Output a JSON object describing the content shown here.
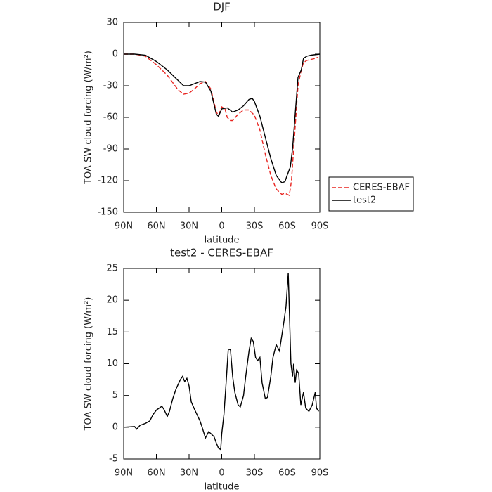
{
  "chart_data": [
    {
      "type": "line",
      "title": "DJF",
      "x_label": "latitude",
      "y_label": "TOA SW cloud forcing (W/m²)",
      "xlim": [
        90,
        -90
      ],
      "ylim": [
        -150,
        30
      ],
      "xticks": [
        {
          "value": 90,
          "label": "90N"
        },
        {
          "value": 60,
          "label": "60N"
        },
        {
          "value": 30,
          "label": "30N"
        },
        0,
        {
          "value": -30,
          "label": "30S"
        },
        {
          "value": -60,
          "label": "60S"
        },
        {
          "value": -90,
          "label": "90S"
        }
      ],
      "yticks": [
        -150,
        -120,
        -90,
        -60,
        -30,
        0,
        30
      ],
      "legend": "right",
      "series": [
        {
          "name": "CERES-EBAF",
          "color": "#e8231f",
          "line_style": "dashed",
          "x": [
            90,
            80,
            70,
            60,
            50,
            40,
            35,
            30,
            25,
            20,
            15,
            10,
            5,
            3,
            0,
            -3,
            -5,
            -8,
            -10,
            -15,
            -20,
            -25,
            -30,
            -35,
            -40,
            -45,
            -50,
            -55,
            -58,
            -60,
            -62,
            -64,
            -66,
            -68,
            -70,
            -73,
            -75,
            -78,
            -82,
            -86,
            -88
          ],
          "values": [
            0,
            0,
            -2,
            -10,
            -20,
            -34,
            -38,
            -37,
            -33,
            -28,
            -26,
            -33,
            -55,
            -58,
            -50,
            -52,
            -60,
            -63,
            -63,
            -57,
            -53,
            -53,
            -58,
            -72,
            -95,
            -115,
            -128,
            -133,
            -132,
            -133,
            -134,
            -120,
            -90,
            -60,
            -30,
            -15,
            -8,
            -6,
            -5,
            -4,
            -3
          ]
        },
        {
          "name": "test2",
          "color": "#000000",
          "line_style": "solid",
          "x": [
            90,
            80,
            70,
            60,
            50,
            40,
            35,
            30,
            25,
            20,
            15,
            10,
            5,
            3,
            0,
            -5,
            -10,
            -15,
            -20,
            -25,
            -28,
            -30,
            -35,
            -40,
            -45,
            -50,
            -55,
            -58,
            -60,
            -63,
            -65,
            -68,
            -70,
            -73,
            -75,
            -78,
            -82,
            -90
          ],
          "values": [
            0,
            0,
            -1,
            -7,
            -15,
            -25,
            -30,
            -30,
            -28,
            -26,
            -26.5,
            -35,
            -57,
            -59,
            -52,
            -51,
            -55,
            -53,
            -49,
            -43,
            -42,
            -45,
            -59,
            -79,
            -99,
            -115,
            -122,
            -121,
            -115,
            -107,
            -89,
            -49,
            -22,
            -15,
            -4,
            -2,
            -1,
            0
          ]
        }
      ]
    },
    {
      "type": "line",
      "title": "test2 - CERES-EBAF",
      "x_label": "latitude",
      "y_label": "TOA SW cloud forcing (W/m²)",
      "xlim": [
        90,
        -90
      ],
      "ylim": [
        -5,
        25
      ],
      "xticks": [
        {
          "value": 90,
          "label": "90N"
        },
        {
          "value": 60,
          "label": "60N"
        },
        {
          "value": 30,
          "label": "30N"
        },
        0,
        {
          "value": -30,
          "label": "30S"
        },
        {
          "value": -60,
          "label": "60S"
        },
        {
          "value": -90,
          "label": "90S"
        }
      ],
      "yticks": [
        -5,
        0,
        5,
        10,
        15,
        20,
        25
      ],
      "series": [
        {
          "color": "#000000",
          "line_style": "solid",
          "x": [
            90,
            80,
            78,
            75,
            70,
            66,
            63,
            60,
            55,
            53,
            50,
            48,
            45,
            42,
            38,
            36,
            34,
            32,
            30,
            28,
            25,
            20,
            18,
            15,
            12,
            10,
            7,
            5,
            3,
            1,
            0,
            -2,
            -4,
            -6,
            -8,
            -10,
            -12,
            -15,
            -17,
            -20,
            -22,
            -25,
            -27,
            -29,
            -31,
            -33,
            -35,
            -37,
            -40,
            -42,
            -45,
            -47,
            -50,
            -53,
            -56.5,
            -59,
            -61,
            -63.5,
            -65,
            -66,
            -67.4,
            -68.7,
            -70.6,
            -72.6,
            -75,
            -77,
            -80,
            -83,
            -85.8,
            -87,
            -89
          ],
          "values": [
            0,
            0.1,
            -0.3,
            0.3,
            0.6,
            1,
            2,
            2.7,
            3.3,
            2.8,
            1.7,
            2.5,
            4.5,
            6,
            7.5,
            8,
            7.2,
            7.7,
            6.5,
            4,
            2.8,
            1,
            0,
            -1.7,
            -0.7,
            -1,
            -1.5,
            -2.5,
            -3.3,
            -3.5,
            -1,
            2,
            7,
            12.3,
            12.2,
            8,
            5.5,
            3.5,
            3.2,
            5,
            8,
            12,
            14,
            13.5,
            11,
            10.5,
            11,
            7,
            4.5,
            4.7,
            8,
            11,
            13,
            12,
            16,
            19,
            24.3,
            10,
            8,
            10,
            7,
            9,
            8.5,
            3.5,
            5.5,
            3,
            2.5,
            3.5,
            5.5,
            3,
            2.5
          ]
        }
      ]
    }
  ]
}
